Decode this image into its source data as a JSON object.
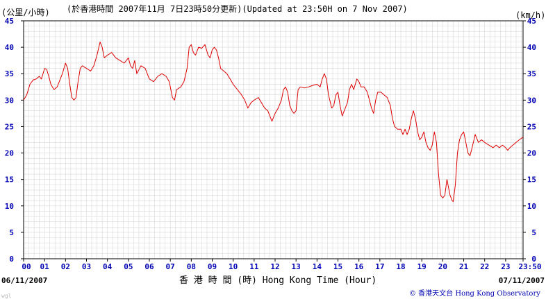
{
  "header": {
    "unit_left": "(公里/小時)",
    "title": "(於香港時間 2007年11月 7日23時50分更新)(Updated at 23:50H on 7 Nov 2007)",
    "unit_right": "(km/h)"
  },
  "footer": {
    "date_left": "06/11/2007",
    "date_right": "07/11/2007",
    "xlabel": "香 港 時 間 (時) Hong Kong Time (Hour)",
    "copyright": "© 香港天文台 Hong Kong Observatory",
    "watermark": "wgl"
  },
  "colors": {
    "line": "#dd0000",
    "ticks": "#0000b4",
    "grid": "#d8d8d8"
  },
  "chart_data": {
    "type": "line",
    "ylim": [
      0,
      45
    ],
    "yticks": [
      0,
      5,
      10,
      15,
      20,
      25,
      30,
      35,
      40,
      45
    ],
    "xlim": [
      0,
      23.833
    ],
    "xticks": [
      {
        "v": 0,
        "label": "00"
      },
      {
        "v": 1,
        "label": "01"
      },
      {
        "v": 2,
        "label": "02"
      },
      {
        "v": 3,
        "label": "03"
      },
      {
        "v": 4,
        "label": "04"
      },
      {
        "v": 5,
        "label": "05"
      },
      {
        "v": 6,
        "label": "06"
      },
      {
        "v": 7,
        "label": "07"
      },
      {
        "v": 8,
        "label": "08"
      },
      {
        "v": 9,
        "label": "09"
      },
      {
        "v": 10,
        "label": "10"
      },
      {
        "v": 11,
        "label": "11"
      },
      {
        "v": 12,
        "label": "12"
      },
      {
        "v": 13,
        "label": "13"
      },
      {
        "v": 14,
        "label": "14"
      },
      {
        "v": 15,
        "label": "15"
      },
      {
        "v": 16,
        "label": "16"
      },
      {
        "v": 17,
        "label": "17"
      },
      {
        "v": 18,
        "label": "18"
      },
      {
        "v": 19,
        "label": "19"
      },
      {
        "v": 20,
        "label": "20"
      },
      {
        "v": 21,
        "label": "21"
      },
      {
        "v": 22,
        "label": "22"
      },
      {
        "v": 23,
        "label": "23"
      },
      {
        "v": 23.833,
        "label": "23:50"
      }
    ],
    "grid": true,
    "series": [
      {
        "points": [
          [
            0.0,
            30.0
          ],
          [
            0.15,
            31.0
          ],
          [
            0.3,
            33.0
          ],
          [
            0.45,
            33.8
          ],
          [
            0.6,
            34.0
          ],
          [
            0.75,
            34.5
          ],
          [
            0.85,
            34.0
          ],
          [
            1.0,
            36.0
          ],
          [
            1.1,
            35.8
          ],
          [
            1.2,
            34.5
          ],
          [
            1.3,
            33.0
          ],
          [
            1.45,
            32.0
          ],
          [
            1.6,
            32.5
          ],
          [
            1.75,
            34.0
          ],
          [
            1.85,
            35.0
          ],
          [
            2.0,
            37.0
          ],
          [
            2.1,
            36.0
          ],
          [
            2.2,
            33.0
          ],
          [
            2.3,
            30.5
          ],
          [
            2.4,
            30.0
          ],
          [
            2.5,
            30.5
          ],
          [
            2.6,
            33.5
          ],
          [
            2.7,
            36.0
          ],
          [
            2.8,
            36.5
          ],
          [
            3.0,
            36.0
          ],
          [
            3.2,
            35.5
          ],
          [
            3.35,
            36.5
          ],
          [
            3.5,
            38.5
          ],
          [
            3.65,
            41.0
          ],
          [
            3.75,
            40.0
          ],
          [
            3.85,
            38.0
          ],
          [
            4.0,
            38.5
          ],
          [
            4.2,
            39.0
          ],
          [
            4.4,
            38.0
          ],
          [
            4.6,
            37.5
          ],
          [
            4.8,
            37.0
          ],
          [
            5.0,
            38.0
          ],
          [
            5.1,
            36.5
          ],
          [
            5.2,
            36.0
          ],
          [
            5.3,
            37.5
          ],
          [
            5.4,
            35.0
          ],
          [
            5.6,
            36.5
          ],
          [
            5.8,
            36.0
          ],
          [
            6.0,
            34.0
          ],
          [
            6.2,
            33.5
          ],
          [
            6.4,
            34.5
          ],
          [
            6.6,
            35.0
          ],
          [
            6.8,
            34.5
          ],
          [
            6.95,
            33.5
          ],
          [
            7.1,
            30.5
          ],
          [
            7.2,
            30.0
          ],
          [
            7.3,
            32.0
          ],
          [
            7.5,
            32.5
          ],
          [
            7.65,
            33.5
          ],
          [
            7.8,
            36.0
          ],
          [
            7.9,
            40.0
          ],
          [
            8.0,
            40.5
          ],
          [
            8.1,
            39.0
          ],
          [
            8.2,
            38.5
          ],
          [
            8.35,
            40.0
          ],
          [
            8.5,
            39.8
          ],
          [
            8.65,
            40.5
          ],
          [
            8.8,
            38.5
          ],
          [
            8.9,
            38.0
          ],
          [
            9.0,
            39.5
          ],
          [
            9.1,
            40.0
          ],
          [
            9.2,
            39.5
          ],
          [
            9.3,
            38.0
          ],
          [
            9.4,
            36.0
          ],
          [
            9.55,
            35.5
          ],
          [
            9.7,
            35.0
          ],
          [
            9.85,
            34.0
          ],
          [
            10.0,
            33.0
          ],
          [
            10.2,
            32.0
          ],
          [
            10.4,
            31.0
          ],
          [
            10.55,
            30.0
          ],
          [
            10.7,
            28.5
          ],
          [
            10.85,
            29.5
          ],
          [
            11.0,
            30.0
          ],
          [
            11.2,
            30.5
          ],
          [
            11.35,
            29.5
          ],
          [
            11.5,
            28.5
          ],
          [
            11.65,
            28.0
          ],
          [
            11.75,
            27.0
          ],
          [
            11.85,
            26.0
          ],
          [
            12.0,
            27.5
          ],
          [
            12.15,
            28.5
          ],
          [
            12.3,
            30.0
          ],
          [
            12.4,
            32.0
          ],
          [
            12.5,
            32.5
          ],
          [
            12.6,
            31.5
          ],
          [
            12.7,
            29.0
          ],
          [
            12.8,
            28.0
          ],
          [
            12.9,
            27.5
          ],
          [
            13.0,
            28.0
          ],
          [
            13.1,
            32.0
          ],
          [
            13.2,
            32.5
          ],
          [
            13.4,
            32.3
          ],
          [
            13.6,
            32.5
          ],
          [
            13.8,
            32.8
          ],
          [
            14.0,
            33.0
          ],
          [
            14.15,
            32.5
          ],
          [
            14.25,
            34.0
          ],
          [
            14.35,
            35.0
          ],
          [
            14.45,
            34.0
          ],
          [
            14.55,
            31.0
          ],
          [
            14.7,
            28.5
          ],
          [
            14.8,
            29.0
          ],
          [
            14.9,
            31.0
          ],
          [
            15.0,
            31.5
          ],
          [
            15.1,
            29.0
          ],
          [
            15.2,
            27.0
          ],
          [
            15.3,
            28.0
          ],
          [
            15.45,
            29.5
          ],
          [
            15.55,
            32.0
          ],
          [
            15.65,
            33.0
          ],
          [
            15.75,
            32.0
          ],
          [
            15.9,
            34.0
          ],
          [
            16.0,
            33.5
          ],
          [
            16.1,
            32.5
          ],
          [
            16.25,
            32.5
          ],
          [
            16.4,
            31.5
          ],
          [
            16.5,
            30.0
          ],
          [
            16.6,
            28.5
          ],
          [
            16.7,
            27.5
          ],
          [
            16.8,
            30.0
          ],
          [
            16.9,
            31.5
          ],
          [
            17.05,
            31.5
          ],
          [
            17.2,
            31.0
          ],
          [
            17.35,
            30.5
          ],
          [
            17.5,
            29.0
          ],
          [
            17.6,
            26.5
          ],
          [
            17.7,
            25.0
          ],
          [
            17.85,
            24.5
          ],
          [
            18.0,
            24.5
          ],
          [
            18.1,
            23.5
          ],
          [
            18.2,
            24.5
          ],
          [
            18.3,
            23.5
          ],
          [
            18.4,
            24.5
          ],
          [
            18.5,
            26.5
          ],
          [
            18.6,
            28.0
          ],
          [
            18.7,
            26.5
          ],
          [
            18.8,
            24.0
          ],
          [
            18.9,
            22.5
          ],
          [
            19.0,
            23.0
          ],
          [
            19.1,
            24.0
          ],
          [
            19.2,
            22.0
          ],
          [
            19.3,
            21.0
          ],
          [
            19.4,
            20.5
          ],
          [
            19.5,
            21.5
          ],
          [
            19.6,
            24.0
          ],
          [
            19.7,
            22.0
          ],
          [
            19.8,
            16.0
          ],
          [
            19.9,
            12.0
          ],
          [
            20.0,
            11.5
          ],
          [
            20.1,
            12.0
          ],
          [
            20.2,
            15.0
          ],
          [
            20.25,
            14.0
          ],
          [
            20.35,
            12.0
          ],
          [
            20.45,
            11.0
          ],
          [
            20.5,
            10.8
          ],
          [
            20.6,
            14.0
          ],
          [
            20.7,
            20.0
          ],
          [
            20.8,
            22.5
          ],
          [
            20.9,
            23.5
          ],
          [
            21.0,
            24.0
          ],
          [
            21.1,
            22.0
          ],
          [
            21.2,
            20.0
          ],
          [
            21.3,
            19.5
          ],
          [
            21.4,
            21.0
          ],
          [
            21.55,
            23.5
          ],
          [
            21.7,
            22.0
          ],
          [
            21.85,
            22.5
          ],
          [
            22.0,
            22.0
          ],
          [
            22.2,
            21.5
          ],
          [
            22.4,
            21.0
          ],
          [
            22.55,
            21.5
          ],
          [
            22.7,
            21.0
          ],
          [
            22.85,
            21.5
          ],
          [
            23.0,
            21.0
          ],
          [
            23.1,
            20.5
          ],
          [
            23.2,
            21.0
          ],
          [
            23.35,
            21.5
          ],
          [
            23.5,
            22.0
          ],
          [
            23.65,
            22.5
          ],
          [
            23.833,
            23.0
          ]
        ]
      }
    ]
  }
}
